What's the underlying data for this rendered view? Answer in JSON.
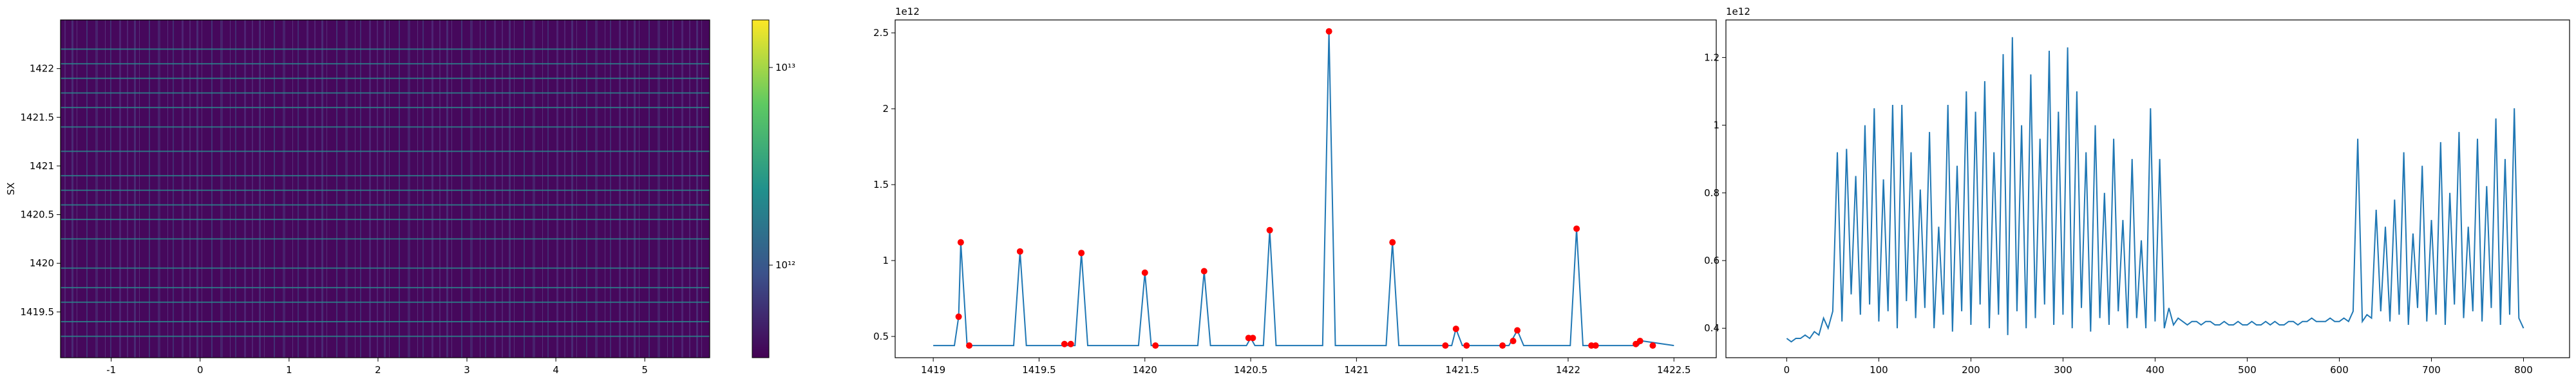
{
  "chart_data": [
    {
      "type": "heatmap",
      "ylabel": "SX",
      "xlim": [
        -1.57,
        5.73
      ],
      "ylim": [
        1419.03,
        1422.5
      ],
      "xticks": [
        -1,
        0,
        1,
        2,
        3,
        4,
        5
      ],
      "yticks": [
        1419.5,
        1420.0,
        1420.5,
        1421.0,
        1421.5,
        1422.0
      ],
      "background": "#46085c",
      "line_color": "#2a8a8c",
      "hlines": [
        1419.25,
        1419.4,
        1419.6,
        1419.75,
        1419.95,
        1420.25,
        1420.45,
        1420.6,
        1420.75,
        1420.9,
        1421.15,
        1421.4,
        1421.6,
        1421.75,
        1421.9,
        1422.05,
        1422.2
      ],
      "colorbar": {
        "log": true,
        "clim": [
          340000000000,
          17400000000000
        ],
        "ticks": [
          {
            "value": 1000000000000,
            "label": "10¹²"
          },
          {
            "value": 10000000000000,
            "label": "10¹³"
          }
        ]
      }
    },
    {
      "type": "line",
      "offset_label": "1e12",
      "xlim": [
        1418.82,
        1422.7
      ],
      "ylim": [
        0.36,
        2.585
      ],
      "xticks": [
        1419.0,
        1419.5,
        1420.0,
        1420.5,
        1421.0,
        1421.5,
        1422.0,
        1422.5
      ],
      "yticks": [
        0.5,
        1.0,
        1.5,
        2.0,
        2.5
      ],
      "series": [
        {
          "kind": "line",
          "color": "#1f77b4",
          "x": [
            1419.0,
            1419.1,
            1419.12,
            1419.13,
            1419.16,
            1419.38,
            1419.41,
            1419.44,
            1419.67,
            1419.7,
            1419.73,
            1419.97,
            1420.0,
            1420.03,
            1420.25,
            1420.28,
            1420.31,
            1420.48,
            1420.5,
            1420.52,
            1420.56,
            1420.59,
            1420.62,
            1420.84,
            1420.87,
            1420.9,
            1421.14,
            1421.17,
            1421.2,
            1421.45,
            1421.47,
            1421.5,
            1421.72,
            1421.76,
            1421.79,
            1422.01,
            1422.04,
            1422.07,
            1422.33,
            1422.35,
            1422.5
          ],
          "values": [
            0.44,
            0.44,
            0.63,
            1.12,
            0.44,
            0.44,
            1.06,
            0.44,
            0.44,
            1.05,
            0.44,
            0.44,
            0.92,
            0.44,
            0.44,
            0.93,
            0.44,
            0.44,
            0.49,
            0.44,
            0.44,
            1.2,
            0.44,
            0.44,
            2.51,
            0.44,
            0.44,
            1.12,
            0.44,
            0.44,
            0.55,
            0.44,
            0.44,
            0.54,
            0.44,
            0.44,
            1.21,
            0.44,
            0.44,
            0.47,
            0.44
          ]
        },
        {
          "kind": "scatter",
          "color": "#ff0000",
          "x": [
            1419.12,
            1419.13,
            1419.17,
            1419.41,
            1419.62,
            1419.65,
            1419.7,
            1420.0,
            1420.05,
            1420.28,
            1420.49,
            1420.51,
            1420.59,
            1420.87,
            1421.17,
            1421.42,
            1421.47,
            1421.52,
            1421.69,
            1421.74,
            1421.76,
            1422.04,
            1422.11,
            1422.13,
            1422.32,
            1422.34,
            1422.4
          ],
          "values": [
            0.63,
            1.12,
            0.44,
            1.06,
            0.45,
            0.45,
            1.05,
            0.92,
            0.44,
            0.93,
            0.49,
            0.49,
            1.2,
            2.51,
            1.12,
            0.44,
            0.55,
            0.44,
            0.44,
            0.47,
            0.54,
            1.21,
            0.44,
            0.44,
            0.45,
            0.47,
            0.44
          ]
        }
      ]
    },
    {
      "type": "line",
      "offset_label": "1e12",
      "xlim": [
        -66,
        850
      ],
      "ylim": [
        0.313,
        1.311
      ],
      "xticks": [
        0,
        100,
        200,
        300,
        400,
        500,
        600,
        700,
        800
      ],
      "yticks": [
        0.4,
        0.6,
        0.8,
        1.0,
        1.2
      ],
      "series": [
        {
          "kind": "line",
          "color": "#1f77b4",
          "x": [
            0,
            5,
            10,
            15,
            20,
            25,
            30,
            35,
            40,
            45,
            50,
            55,
            60,
            65,
            70,
            75,
            80,
            85,
            90,
            95,
            100,
            105,
            110,
            115,
            120,
            125,
            130,
            135,
            140,
            145,
            150,
            155,
            160,
            165,
            170,
            175,
            180,
            185,
            190,
            195,
            200,
            205,
            210,
            215,
            220,
            225,
            230,
            235,
            240,
            245,
            250,
            255,
            260,
            265,
            270,
            275,
            280,
            285,
            290,
            295,
            300,
            305,
            310,
            315,
            320,
            325,
            330,
            335,
            340,
            345,
            350,
            355,
            360,
            365,
            370,
            375,
            380,
            385,
            390,
            395,
            400,
            405,
            410,
            415,
            420,
            425,
            430,
            435,
            440,
            445,
            450,
            455,
            460,
            465,
            470,
            475,
            480,
            485,
            490,
            495,
            500,
            505,
            510,
            515,
            520,
            525,
            530,
            535,
            540,
            545,
            550,
            555,
            560,
            565,
            570,
            575,
            580,
            585,
            590,
            595,
            600,
            605,
            610,
            615,
            620,
            625,
            630,
            635,
            640,
            645,
            650,
            655,
            660,
            665,
            670,
            675,
            680,
            685,
            690,
            695,
            700,
            705,
            710,
            715,
            720,
            725,
            730,
            735,
            740,
            745,
            750,
            755,
            760,
            765,
            770,
            775,
            780,
            785,
            790,
            795,
            800
          ],
          "values": [
            0.37,
            0.36,
            0.37,
            0.37,
            0.38,
            0.37,
            0.39,
            0.38,
            0.43,
            0.4,
            0.45,
            0.92,
            0.42,
            0.93,
            0.5,
            0.85,
            0.44,
            1.0,
            0.47,
            1.05,
            0.42,
            0.84,
            0.45,
            1.06,
            0.4,
            1.06,
            0.48,
            0.92,
            0.43,
            0.81,
            0.46,
            0.98,
            0.4,
            0.7,
            0.44,
            1.06,
            0.39,
            0.88,
            0.45,
            1.1,
            0.41,
            1.04,
            0.47,
            1.13,
            0.4,
            0.92,
            0.44,
            1.21,
            0.38,
            1.26,
            0.45,
            1.0,
            0.4,
            1.15,
            0.43,
            0.96,
            0.47,
            1.22,
            0.41,
            1.04,
            0.44,
            1.23,
            0.4,
            1.1,
            0.46,
            0.92,
            0.39,
            1.0,
            0.43,
            0.8,
            0.41,
            0.96,
            0.45,
            0.72,
            0.4,
            0.9,
            0.43,
            0.66,
            0.4,
            1.05,
            0.42,
            0.9,
            0.4,
            0.46,
            0.41,
            0.43,
            0.42,
            0.41,
            0.42,
            0.42,
            0.41,
            0.42,
            0.42,
            0.41,
            0.41,
            0.42,
            0.41,
            0.41,
            0.42,
            0.41,
            0.41,
            0.42,
            0.41,
            0.41,
            0.42,
            0.41,
            0.42,
            0.41,
            0.41,
            0.42,
            0.42,
            0.41,
            0.42,
            0.42,
            0.43,
            0.42,
            0.42,
            0.42,
            0.43,
            0.42,
            0.42,
            0.43,
            0.42,
            0.45,
            0.96,
            0.42,
            0.44,
            0.43,
            0.75,
            0.45,
            0.7,
            0.42,
            0.78,
            0.44,
            0.92,
            0.41,
            0.68,
            0.46,
            0.88,
            0.42,
            0.72,
            0.44,
            0.95,
            0.41,
            0.8,
            0.47,
            0.98,
            0.43,
            0.7,
            0.45,
            0.96,
            0.42,
            0.82,
            0.46,
            1.02,
            0.41,
            0.9,
            0.44,
            1.05,
            0.43,
            0.4
          ]
        }
      ]
    }
  ]
}
